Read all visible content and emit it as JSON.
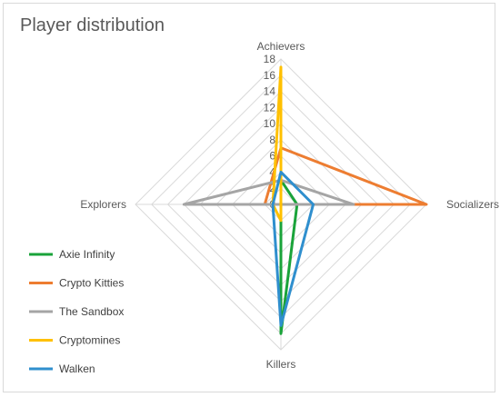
{
  "chart_data": {
    "type": "radar",
    "title": "Player distribution",
    "axes": [
      "Achievers",
      "Socializers",
      "Killers",
      "Explorers"
    ],
    "rmax": 18,
    "ticks": [
      0,
      2,
      4,
      6,
      8,
      10,
      12,
      14,
      16,
      18
    ],
    "grid": true,
    "legend_position": "left",
    "series": [
      {
        "name": "Axie Infinity",
        "color": "#1aa33a",
        "values": [
          3,
          2,
          16,
          0
        ]
      },
      {
        "name": "Crypto Kitties",
        "color": "#ed7d31",
        "values": [
          7,
          18,
          0,
          2
        ]
      },
      {
        "name": "The Sandbox",
        "color": "#a5a5a5",
        "values": [
          3,
          9,
          0,
          12
        ]
      },
      {
        "name": "Cryptomines",
        "color": "#ffc000",
        "values": [
          17,
          0,
          2,
          1
        ]
      },
      {
        "name": "Walken",
        "color": "#2f8fce",
        "values": [
          4,
          4,
          15,
          1
        ]
      }
    ]
  }
}
